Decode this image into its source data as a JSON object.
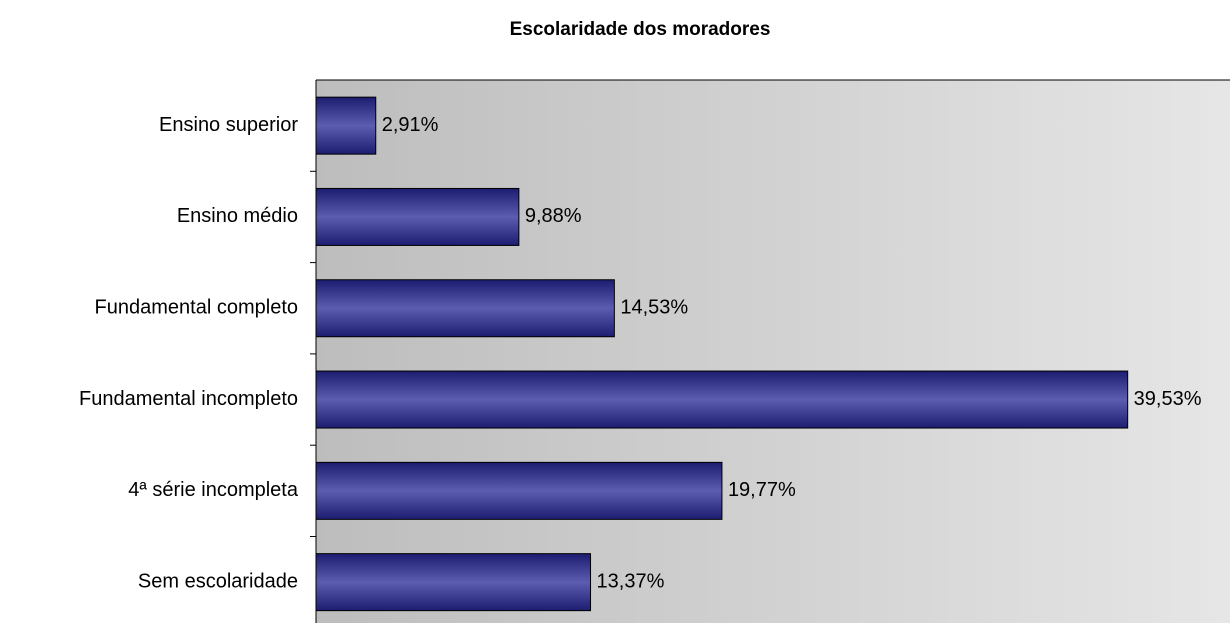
{
  "chart_data": {
    "type": "bar",
    "orientation": "horizontal",
    "title": "Escolaridade dos moradores",
    "categories": [
      "Ensino superior",
      "Ensino médio",
      "Fundamental completo",
      "Fundamental incompleto",
      "4ª série incompleta",
      "Sem escolaridade"
    ],
    "values": [
      2.91,
      9.88,
      14.53,
      39.53,
      19.77,
      13.37
    ],
    "value_labels": [
      "2,91%",
      "9,88%",
      "14,53%",
      "39,53%",
      "19,77%",
      "13,37%"
    ],
    "color": "#4a4aa0",
    "xlim": [
      0,
      45
    ]
  }
}
